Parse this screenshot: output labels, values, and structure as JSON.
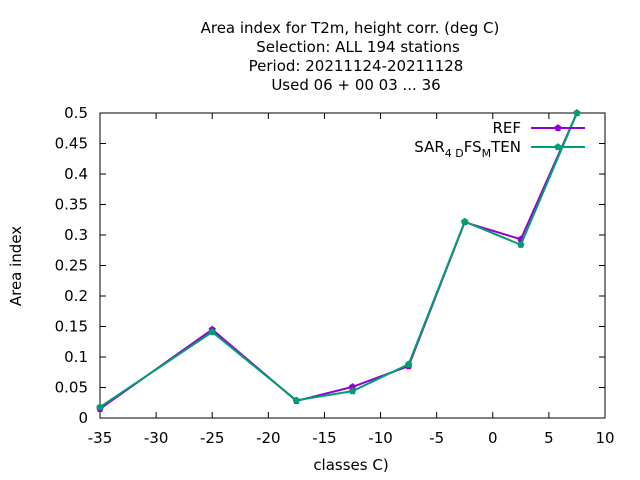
{
  "chart_data": {
    "type": "line",
    "title_lines": [
      "Area index  for T2m, height corr. (deg C)",
      "Selection: ALL    194 stations",
      "Period: 20211124-20211128",
      "Used  06 + 00 03 ... 36"
    ],
    "xlabel": "classes C)",
    "ylabel": "Area index",
    "xlim": [
      -35,
      10
    ],
    "ylim": [
      0,
      0.5
    ],
    "x_ticks": [
      "-35",
      "-30",
      "-25",
      "-20",
      "-15",
      "-10",
      "-5",
      "0",
      "5",
      "10"
    ],
    "y_ticks": [
      "0",
      "0.05",
      "0.1",
      "0.15",
      "0.2",
      "0.25",
      "0.3",
      "0.35",
      "0.4",
      "0.45",
      "0.5"
    ],
    "x": [
      -35,
      -25,
      -17.5,
      -12.5,
      -7.5,
      -2.5,
      2.5,
      7.5
    ],
    "series": [
      {
        "name": "REF",
        "color": "#9400d3",
        "values": [
          0.015,
          0.145,
          0.028,
          0.051,
          0.085,
          0.321,
          0.293,
          0.5
        ]
      },
      {
        "name_parts": [
          "SAR",
          "4 D",
          "FS",
          "M",
          "TEN"
        ],
        "color": "#009e73",
        "values": [
          0.018,
          0.141,
          0.029,
          0.044,
          0.088,
          0.322,
          0.284,
          0.5
        ]
      }
    ],
    "legend_position": "top-right",
    "grid": false
  }
}
